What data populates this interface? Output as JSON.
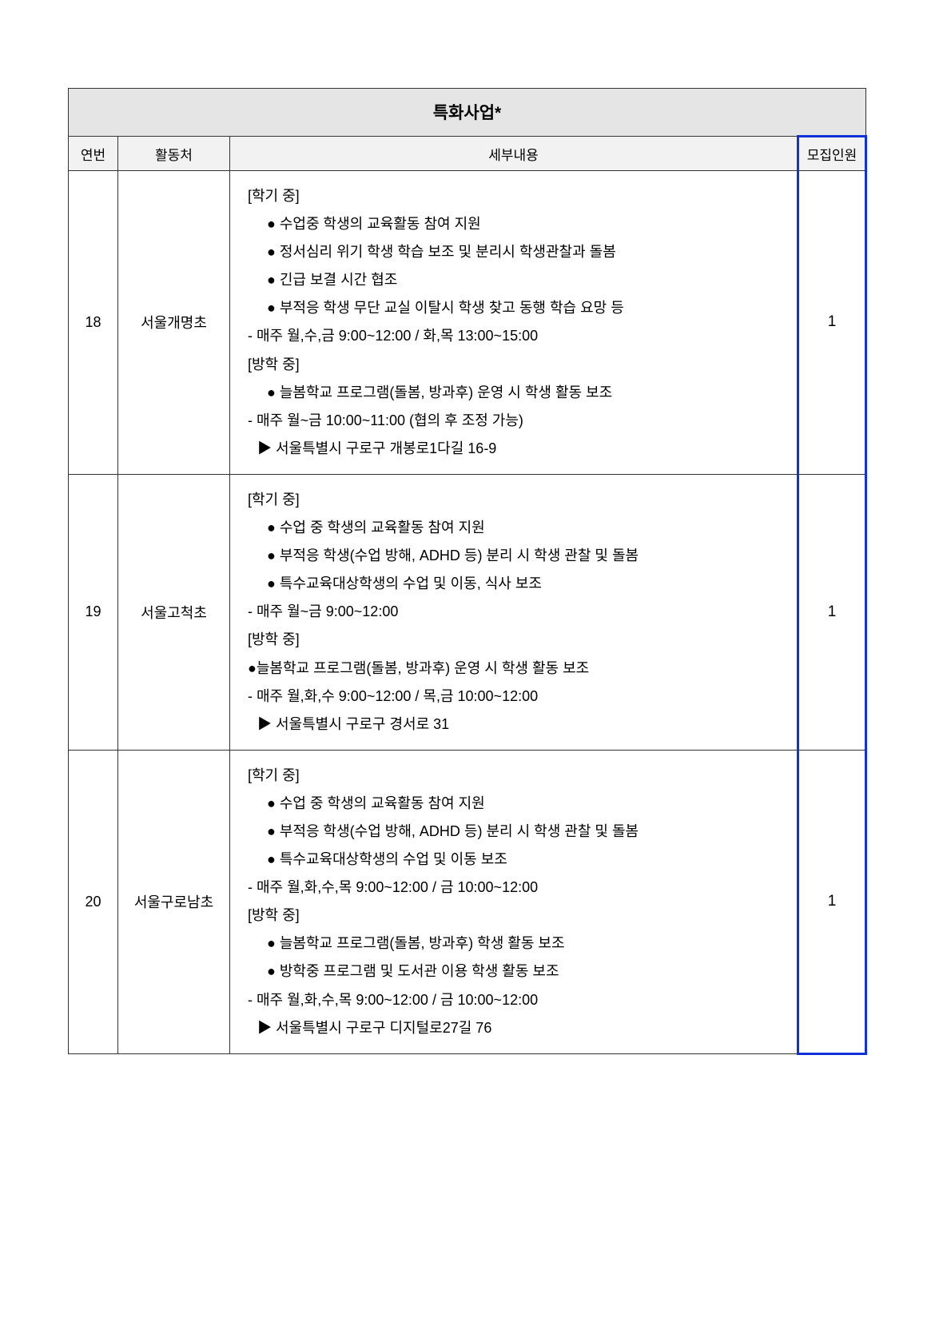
{
  "table": {
    "title": "특화사업*",
    "columns": [
      "연번",
      "활동처",
      "세부내용",
      "모집인원"
    ],
    "highlight_color": "#1030d8",
    "header_bg": "#f2f2f2",
    "title_bg": "#e5e5e5",
    "border_color": "#333333",
    "rows": [
      {
        "no": "18",
        "place": "서울개명초",
        "quota": "1",
        "lines": [
          {
            "type": "section",
            "text": "[학기 중]"
          },
          {
            "type": "bullet",
            "text": "● 수업중 학생의 교육활동 참여 지원"
          },
          {
            "type": "bullet",
            "text": "● 정서심리 위기 학생 학습 보조 및 분리시 학생관찰과 돌봄"
          },
          {
            "type": "bullet",
            "text": "● 긴급 보결 시간 협조"
          },
          {
            "type": "bullet",
            "text": "● 부적응 학생 무단 교실 이탈시 학생 찾고 동행 학습 요망 등"
          },
          {
            "type": "plain",
            "text": "- 매주 월,수,금 9:00~12:00 / 화,목 13:00~15:00"
          },
          {
            "type": "section",
            "text": "[방학 중]"
          },
          {
            "type": "bullet",
            "text": "● 늘봄학교 프로그램(돌봄,  방과후) 운영 시 학생 활동 보조"
          },
          {
            "type": "plain",
            "text": "- 매주 월~금 10:00~11:00 (협의 후 조정 가능)"
          },
          {
            "type": "triangle",
            "text": "▶  서울특별시 구로구 개봉로1다길  16-9"
          }
        ]
      },
      {
        "no": "19",
        "place": "서울고척초",
        "quota": "1",
        "lines": [
          {
            "type": "section",
            "text": "[학기 중]"
          },
          {
            "type": "bullet",
            "text": "● 수업 중 학생의 교육활동 참여 지원"
          },
          {
            "type": "bullet",
            "text": "● 부적응 학생(수업 방해, ADHD 등) 분리 시 학생 관찰 및 돌봄"
          },
          {
            "type": "bullet",
            "text": "● 특수교육대상학생의 수업 및 이동, 식사 보조"
          },
          {
            "type": "plain",
            "text": "  - 매주  월~금 9:00~12:00"
          },
          {
            "type": "section",
            "text": "[방학 중]"
          },
          {
            "type": "plain",
            "text": " ●늘봄학교 프로그램(돌봄, 방과후) 운영 시 학생 활동 보조"
          },
          {
            "type": "plain",
            "text": "- 매주 월,화,수 9:00~12:00 / 목,금 10:00~12:00"
          },
          {
            "type": "triangle",
            "text": "▶  서울특별시 구로구 경서로  31"
          }
        ]
      },
      {
        "no": "20",
        "place": "서울구로남초",
        "quota": "1",
        "lines": [
          {
            "type": "section",
            "text": "[학기 중]"
          },
          {
            "type": "bullet",
            "text": "● 수업 중 학생의 교육활동 참여 지원"
          },
          {
            "type": "bullet",
            "text": "● 부적응 학생(수업 방해, ADHD 등) 분리 시 학생 관찰 및 돌봄"
          },
          {
            "type": "bullet",
            "text": "●  특수교육대상학생의 수업 및 이동 보조"
          },
          {
            "type": "plain",
            "text": "- 매주 월,화,수,목 9:00~12:00 / 금 10:00~12:00"
          },
          {
            "type": "section",
            "text": "[방학 중]"
          },
          {
            "type": "bullet",
            "text": "● 늘봄학교 프로그램(돌봄, 방과후) 학생 활동 보조"
          },
          {
            "type": "bullet",
            "text": "●   방학중 프로그램 및 도서관 이용 학생 활동 보조"
          },
          {
            "type": "plain",
            "text": "- 매주 월,화,수,목 9:00~12:00 / 금 10:00~12:00"
          },
          {
            "type": "triangle",
            "text": "▶  서울특별시 구로구 디지털로27길  76"
          }
        ]
      }
    ]
  }
}
